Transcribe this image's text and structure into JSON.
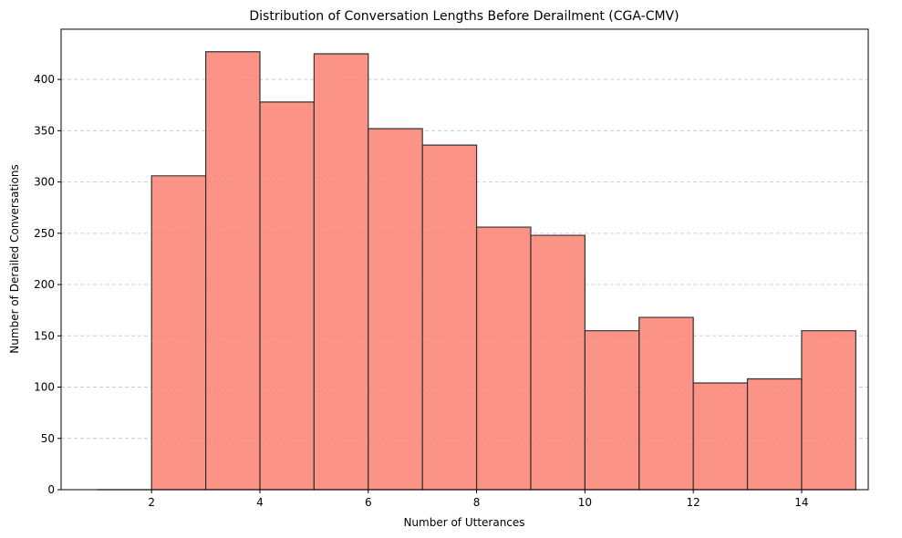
{
  "chart_data": {
    "type": "histogram",
    "title": "Distribution of Conversation Lengths Before Derailment (CGA-CMV)",
    "xlabel": "Number of Utterances",
    "ylabel": "Number of Derailed Conversations",
    "bins": [
      1,
      2,
      3,
      4,
      5,
      6,
      7,
      8,
      9,
      10,
      11,
      12,
      13,
      14,
      15
    ],
    "counts": [
      0,
      306,
      427,
      378,
      425,
      352,
      336,
      256,
      248,
      155,
      168,
      104,
      108,
      155
    ],
    "color": "#fa8072",
    "edgecolor": "#333333",
    "xlim": [
      0.33,
      15.23
    ],
    "xticks": [
      2,
      4,
      6,
      8,
      10,
      12,
      14
    ],
    "ylim": [
      0,
      449
    ],
    "yticks": [
      0,
      50,
      100,
      150,
      200,
      250,
      300,
      350,
      400
    ],
    "grid": true
  }
}
